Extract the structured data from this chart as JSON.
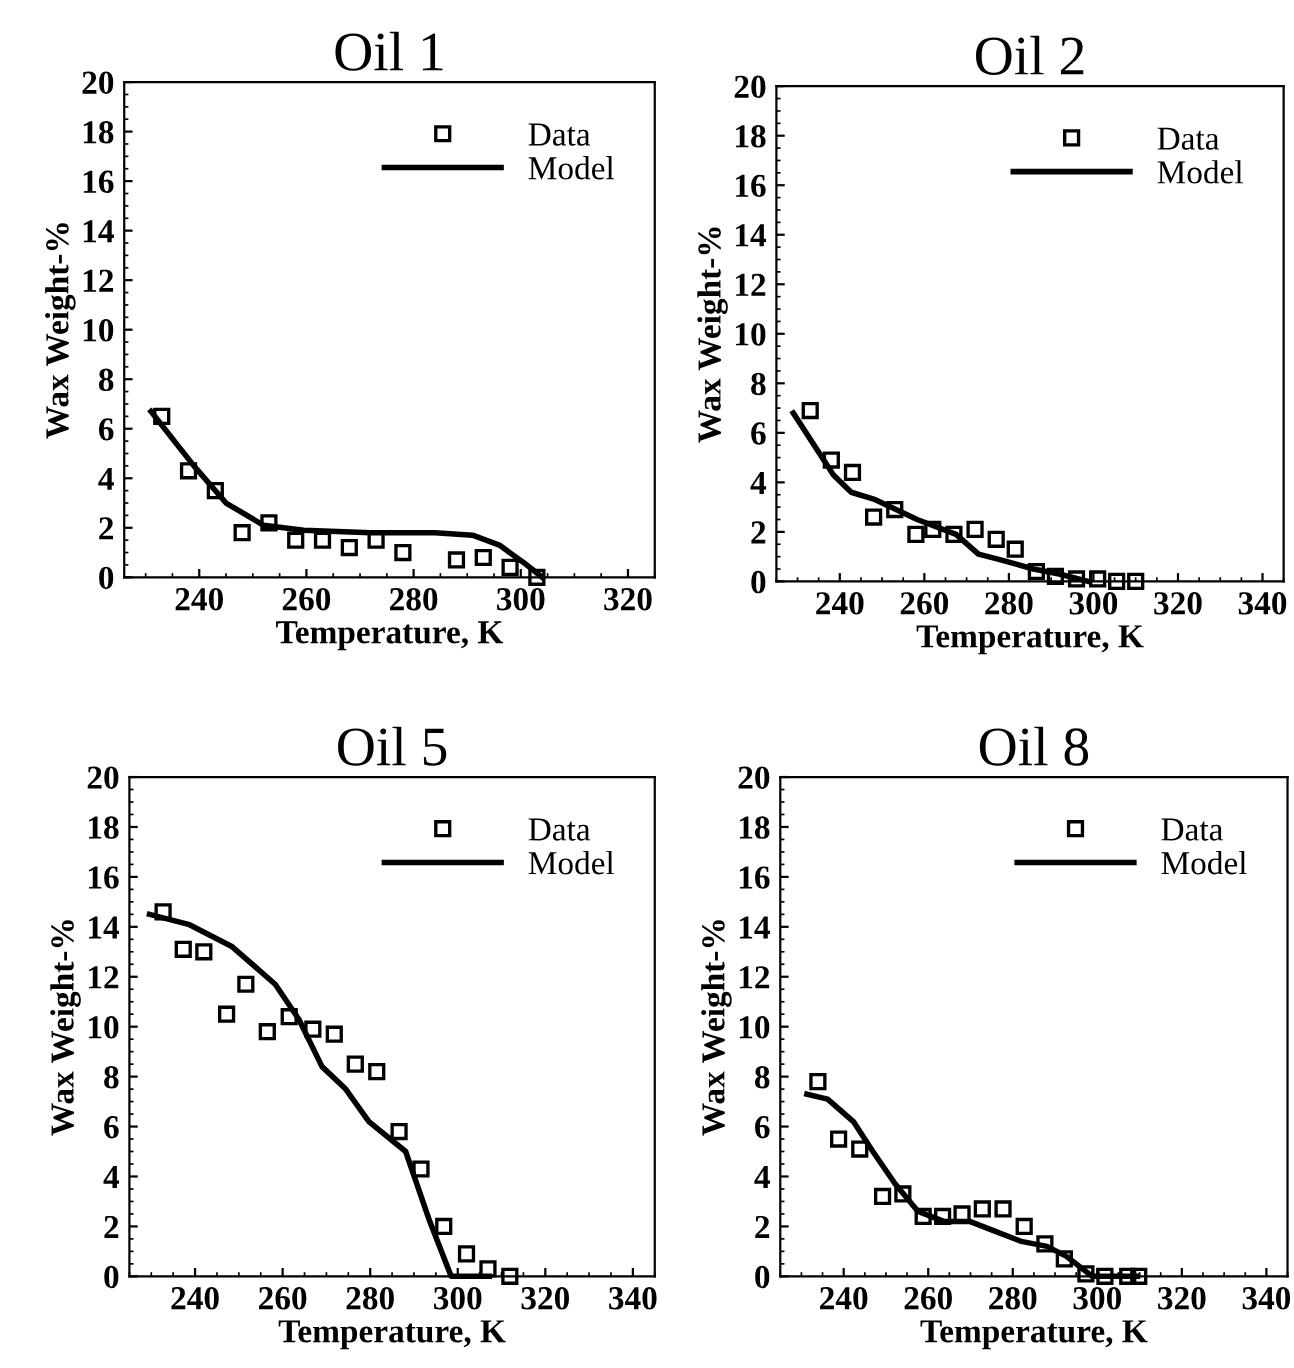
{
  "chart_data": [
    {
      "type": "scatter",
      "title": "Oil 1",
      "xlabel": "Temperature, K",
      "ylabel": "Wax Weight-%",
      "xlim": [
        226,
        325
      ],
      "ylim": [
        0,
        20
      ],
      "xticks": [
        240,
        260,
        280,
        300,
        320
      ],
      "yticks": [
        0,
        2,
        4,
        6,
        8,
        10,
        12,
        14,
        16,
        18,
        20
      ],
      "legend": "top right",
      "series": [
        {
          "name": "Data",
          "marker": "square",
          "color": "#000000",
          "x": [
            233,
            238,
            243,
            248,
            253,
            258,
            263,
            268,
            273,
            278,
            288,
            293,
            298,
            303
          ],
          "values": [
            6.5,
            4.3,
            3.5,
            1.8,
            2.2,
            1.5,
            1.5,
            1.2,
            1.5,
            1.0,
            0.7,
            0.8,
            0.4,
            0
          ]
        },
        {
          "name": "Model",
          "type": "line",
          "marker": "none",
          "color": "#000000",
          "x": [
            231,
            239,
            245,
            252,
            259.5,
            272,
            284,
            291,
            296,
            300.5,
            304
          ],
          "values": [
            6.7,
            4.5,
            3.0,
            2.1,
            1.9,
            1.8,
            1.8,
            1.7,
            1.3,
            0.6,
            0
          ]
        }
      ]
    },
    {
      "type": "scatter",
      "title": "Oil 2",
      "xlabel": "Temperature, K",
      "ylabel": "Wax Weight-%",
      "xlim": [
        225,
        345
      ],
      "ylim": [
        0,
        20
      ],
      "xticks": [
        240,
        260,
        280,
        300,
        320,
        340
      ],
      "yticks": [
        0,
        2,
        4,
        6,
        8,
        10,
        12,
        14,
        16,
        18,
        20
      ],
      "legend": "top right",
      "series": [
        {
          "name": "Data",
          "marker": "square",
          "color": "#000000",
          "x": [
            233,
            238,
            243,
            248,
            253,
            258,
            262,
            267,
            272,
            277,
            281.5,
            286.5,
            291,
            296,
            301,
            305.5,
            310
          ],
          "values": [
            6.9,
            4.9,
            4.4,
            2.6,
            2.9,
            1.9,
            2.1,
            1.9,
            2.1,
            1.7,
            1.3,
            0.4,
            0.2,
            0.1,
            0.1,
            0,
            0
          ]
        },
        {
          "name": "Model",
          "type": "line",
          "marker": "none",
          "color": "#000000",
          "x": [
            229,
            238.5,
            242.7,
            248.4,
            258.3,
            267.5,
            272.8,
            277.4,
            285.8,
            291.9,
            298.8
          ],
          "values": [
            6.8,
            4.3,
            3.6,
            3.3,
            2.5,
            1.9,
            1.1,
            0.9,
            0.5,
            0.3,
            0
          ]
        }
      ]
    },
    {
      "type": "scatter",
      "title": "Oil 5",
      "xlabel": "Temperature, K",
      "ylabel": "Wax Weight-%",
      "xlim": [
        225,
        345
      ],
      "ylim": [
        0,
        20
      ],
      "xticks": [
        240,
        260,
        280,
        300,
        320,
        340
      ],
      "yticks": [
        0,
        2,
        4,
        6,
        8,
        10,
        12,
        14,
        16,
        18,
        20
      ],
      "legend": "top right",
      "series": [
        {
          "name": "Data",
          "marker": "square",
          "color": "#000000",
          "x": [
            232.7,
            237.3,
            242,
            247.2,
            251.6,
            256.5,
            261.5,
            266.9,
            271.8,
            276.6,
            281.5,
            286.6,
            291.6,
            296.8,
            302,
            306.9,
            311.9
          ],
          "values": [
            14.6,
            13.1,
            13.0,
            10.5,
            11.7,
            9.8,
            10.4,
            9.9,
            9.7,
            8.5,
            8.2,
            5.8,
            4.3,
            2.0,
            0.9,
            0.3,
            0
          ]
        },
        {
          "name": "Model",
          "type": "line",
          "marker": "none",
          "color": "#000000",
          "x": [
            229.6,
            238.5,
            248.5,
            258.3,
            263.7,
            269,
            274.4,
            279.7,
            288.1,
            293.4,
            298.5,
            307.2
          ],
          "values": [
            14.5,
            14.1,
            13.2,
            11.7,
            10.3,
            8.4,
            7.5,
            6.2,
            5.0,
            2.3,
            0,
            0
          ]
        }
      ]
    },
    {
      "type": "scatter",
      "title": "Oil 8",
      "xlabel": "Temperature, K",
      "ylabel": "Wax Weight-%",
      "xlim": [
        225,
        345
      ],
      "ylim": [
        0,
        20
      ],
      "xticks": [
        240,
        260,
        280,
        300,
        320,
        340
      ],
      "yticks": [
        0,
        2,
        4,
        6,
        8,
        10,
        12,
        14,
        16,
        18,
        20
      ],
      "legend": "top right",
      "series": [
        {
          "name": "Data",
          "marker": "square",
          "color": "#000000",
          "x": [
            233.9,
            238.8,
            243.8,
            249.2,
            254,
            258.8,
            263.4,
            268,
            272.8,
            277.7,
            282.7,
            287.6,
            292.2,
            297.3,
            301.8,
            307.2,
            309.8
          ],
          "values": [
            7.8,
            5.5,
            5.1,
            3.2,
            3.3,
            2.4,
            2.4,
            2.5,
            2.7,
            2.7,
            2.0,
            1.3,
            0.7,
            0.1,
            0,
            0,
            0
          ]
        },
        {
          "name": "Model",
          "type": "line",
          "marker": "none",
          "color": "#000000",
          "x": [
            231.3,
            236.2,
            242.3,
            246.9,
            252.2,
            257.6,
            263.7,
            269.8,
            275.9,
            282,
            288.1,
            292.7,
            298.8,
            309.5
          ],
          "values": [
            7.3,
            7.1,
            6.2,
            5.0,
            3.7,
            2.6,
            2.2,
            2.2,
            1.8,
            1.4,
            1.2,
            0.8,
            0,
            0
          ]
        }
      ]
    }
  ]
}
